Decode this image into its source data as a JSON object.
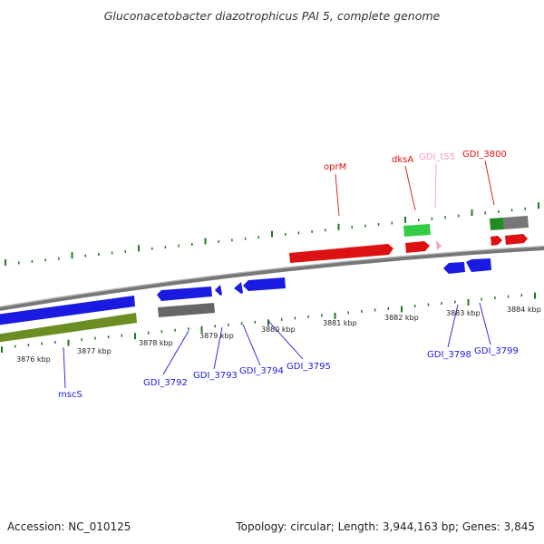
{
  "title": "Gluconacetobacter diazotrophicus PAI 5, complete genome",
  "footer": {
    "accession": "Accession: NC_010125",
    "summary": "Topology: circular; Length: 3,944,163 bp; Genes: 3,845"
  },
  "colors": {
    "forward_cds": "#dd1111",
    "reverse_cds": "#1a1ae0",
    "rna": "#f2a0c8",
    "pseudo_grey": "#777777",
    "green_bar": "#33cc44",
    "olive_bar": "#6b8e23",
    "dark_green": "#228b22",
    "backbone": "#888888",
    "tick": "#227722"
  },
  "kbp_labels": [
    "3876 kbp",
    "3877 kbp",
    "3878 kbp",
    "3879 kbp",
    "3880 kbp",
    "3881 kbp",
    "3882 kbp",
    "3883 kbp",
    "3884 kbp"
  ],
  "gene_labels_top": [
    {
      "text": "oprM",
      "color": "#dd1111"
    },
    {
      "text": "dksA",
      "color": "#dd1111"
    },
    {
      "text": "GDI_t55",
      "color": "#f2a0c8"
    },
    {
      "text": "GDI_3800",
      "color": "#dd1111"
    }
  ],
  "gene_labels_bottom": [
    {
      "text": "mscS",
      "color": "#1a1ae0"
    },
    {
      "text": "GDI_3792",
      "color": "#1a1ae0"
    },
    {
      "text": "GDI_3793",
      "color": "#1a1ae0"
    },
    {
      "text": "GDI_3794",
      "color": "#1a1ae0"
    },
    {
      "text": "GDI_3795",
      "color": "#1a1ae0"
    },
    {
      "text": "GDI_3798",
      "color": "#1a1ae0"
    },
    {
      "text": "GDI_3799",
      "color": "#1a1ae0"
    }
  ]
}
